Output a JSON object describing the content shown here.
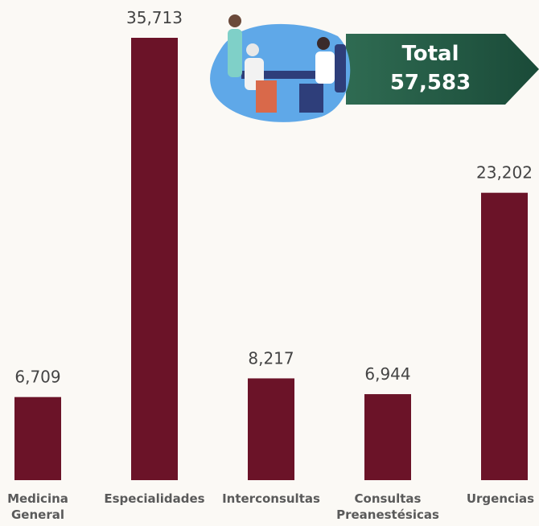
{
  "chart_data": {
    "type": "bar",
    "categories": [
      "Medicina General",
      "Especialidades",
      "Interconsultas",
      "Consultas Preanestésicas",
      "Urgencias"
    ],
    "values": [
      6709,
      35713,
      8217,
      6944,
      23202
    ],
    "value_labels": [
      "6,709",
      "35,713",
      "8,217",
      "6,944",
      "23,202"
    ],
    "color": "#6b1328",
    "total_title": "Total",
    "total_value": "57,583"
  }
}
